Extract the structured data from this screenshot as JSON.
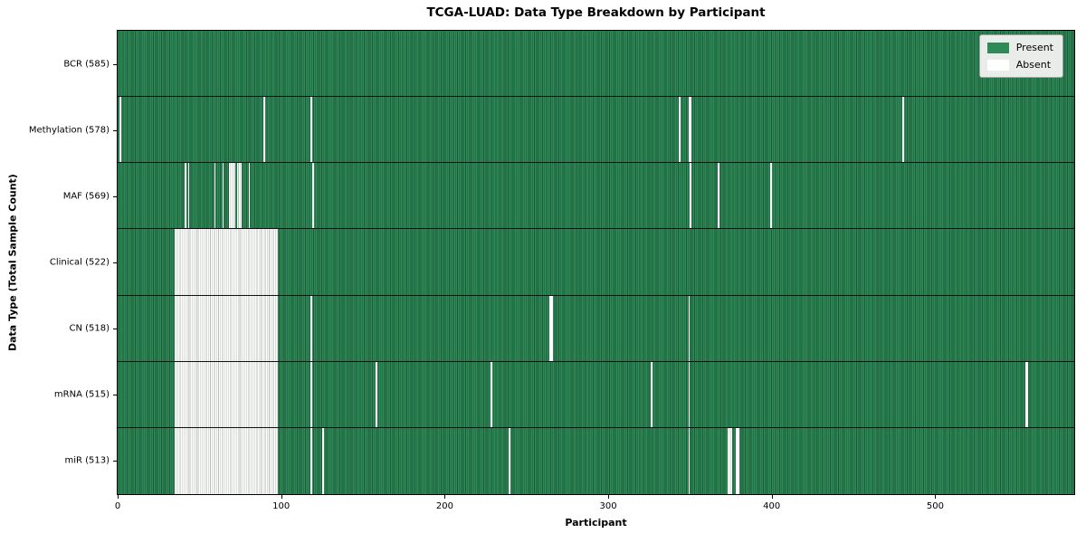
{
  "chart_data": {
    "type": "heatmap",
    "title": "TCGA-LUAD: Data Type Breakdown by Participant",
    "xlabel": "Participant",
    "ylabel": "Data Type (Total Sample Count)",
    "x_ticks": [
      0,
      100,
      200,
      300,
      400,
      500
    ],
    "x_range": [
      0,
      585
    ],
    "n_participants": 585,
    "grid": false,
    "legend_position": "upper right",
    "legend": [
      {
        "label": "Present",
        "color": "#2e8b57"
      },
      {
        "label": "Absent",
        "color": "#ffffff"
      }
    ],
    "rows": [
      {
        "name": "BCR",
        "label": "BCR (585)",
        "total_present": 585,
        "absent_ranges": []
      },
      {
        "name": "Methylation",
        "label": "Methylation (578)",
        "total_present": 578,
        "absent_ranges": [
          [
            1,
            1
          ],
          [
            89,
            89
          ],
          [
            118,
            118
          ],
          [
            343,
            343
          ],
          [
            349,
            350
          ],
          [
            480,
            480
          ]
        ]
      },
      {
        "name": "MAF",
        "label": "MAF (569)",
        "total_present": 569,
        "absent_ranges": [
          [
            41,
            41
          ],
          [
            43,
            43
          ],
          [
            59,
            59
          ],
          [
            64,
            64
          ],
          [
            68,
            71
          ],
          [
            73,
            75
          ],
          [
            80,
            80
          ],
          [
            119,
            119
          ],
          [
            350,
            350
          ],
          [
            367,
            367
          ],
          [
            399,
            399
          ]
        ]
      },
      {
        "name": "Clinical",
        "label": "Clinical (522)",
        "total_present": 522,
        "absent_ranges": [
          [
            35,
            97
          ]
        ]
      },
      {
        "name": "CN",
        "label": "CN (518)",
        "total_present": 518,
        "absent_ranges": [
          [
            35,
            97
          ],
          [
            118,
            118
          ],
          [
            264,
            265
          ],
          [
            349,
            349
          ]
        ]
      },
      {
        "name": "mRNA",
        "label": "mRNA (515)",
        "total_present": 515,
        "absent_ranges": [
          [
            35,
            97
          ],
          [
            118,
            118
          ],
          [
            158,
            158
          ],
          [
            228,
            228
          ],
          [
            326,
            326
          ],
          [
            349,
            349
          ],
          [
            555,
            556
          ]
        ]
      },
      {
        "name": "miR",
        "label": "miR (513)",
        "total_present": 513,
        "absent_ranges": [
          [
            35,
            97
          ],
          [
            118,
            118
          ],
          [
            125,
            125
          ],
          [
            239,
            239
          ],
          [
            349,
            349
          ],
          [
            373,
            375
          ],
          [
            378,
            379
          ]
        ]
      }
    ],
    "colors": {
      "present_fill": "#2e8b57",
      "present_edge": "#1c5a39",
      "absent_fill": "#ffffff",
      "absent_edge": "#b9bdb9",
      "row_separator": "#111111",
      "axis_spine": "#000000",
      "legend_bg": "#e9ede9",
      "legend_border": "#a0a0a0",
      "title_color": "#000000"
    }
  }
}
